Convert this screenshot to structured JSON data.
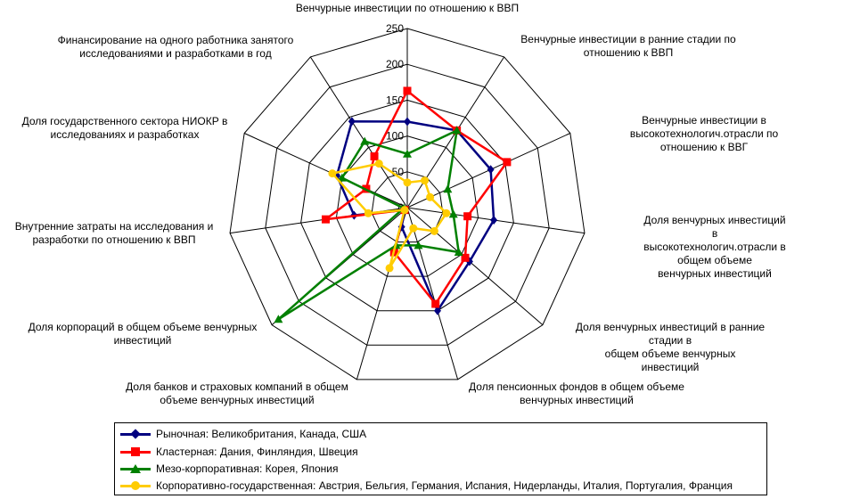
{
  "chart_data": {
    "type": "radar",
    "rmax": 250,
    "ticks": [
      0,
      50,
      100,
      150,
      200,
      250
    ],
    "tick_labels": [
      "0",
      "50",
      "100",
      "150",
      "200",
      "250"
    ],
    "axes": [
      "Венчурные инвестиции по отношению к ВВП",
      "Венчурные инвестиции в ранние стадии по\nотношению к ВВП",
      "Венчурные инвестиции в\nвысокотехнологич.отрасли по отношению к ВВГ",
      "Доля венчурных инвестиций в\nвысокотехнологич.отрасли в общем объеме\nвенчурных инвестиций",
      "Доля венчурных инвестиций в ранние стадии в\nобщем объеме венчурных инвестиций",
      "Доля пенсионных фондов в общем объеме\nвенчурных инвестиций",
      "Доля банков и страховых компаний в общем\nобъеме венчурных инвестиций",
      "Доля корпораций в общем объеме венчурных\nинвестиций",
      "Внутренние затраты на исследования и\nразработки по отношению к ВВП",
      "Доля государственного сектора НИОКР в\nисследованиях и разработках",
      "Финансирование на одного работника занятого\nисследованиями и разработками в год"
    ],
    "series": [
      {
        "name": "Рыночная: Великобритания, Канада, США",
        "color": "#000080",
        "marker": "diamond",
        "values": [
          120,
          128,
          128,
          122,
          115,
          150,
          28,
          5,
          75,
          108,
          143
        ]
      },
      {
        "name": "Кластерная: Дания, Финляндия, Швеция",
        "color": "#ff0000",
        "marker": "square",
        "values": [
          163,
          128,
          153,
          85,
          107,
          140,
          65,
          5,
          115,
          63,
          85
        ]
      },
      {
        "name": "Мезо-корпоративная: Корея, Япония",
        "color": "#008000",
        "marker": "triangle",
        "values": [
          75,
          128,
          62,
          65,
          95,
          55,
          55,
          238,
          5,
          100,
          110
        ]
      },
      {
        "name": "Корпоративно-государственная: Австрия, Бельгия, Германия, Испания, Нидерланды, Италия, Португалия, Франция",
        "color": "#ffcc00",
        "marker": "circle",
        "values": [
          35,
          45,
          35,
          55,
          50,
          30,
          88,
          5,
          55,
          115,
          73
        ]
      }
    ]
  }
}
